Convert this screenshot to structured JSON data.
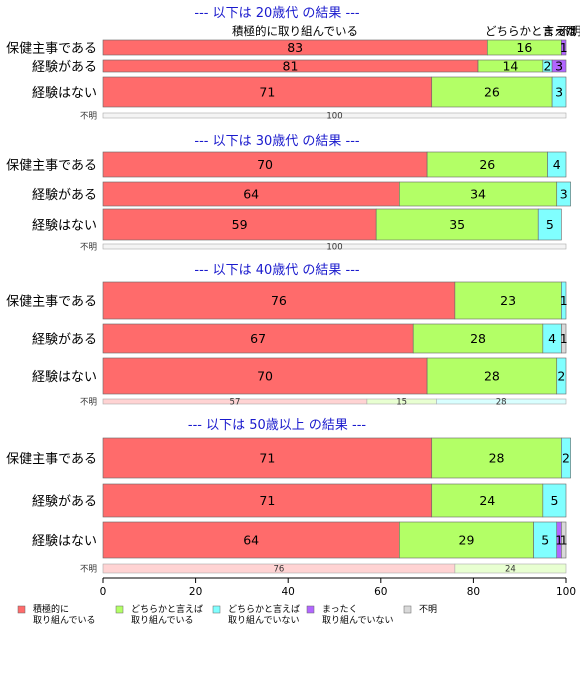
{
  "chart_data": {
    "type": "bar",
    "orientation": "horizontal",
    "stacked": true,
    "xlim": [
      0,
      100
    ],
    "x_ticks": [
      0,
      20,
      40,
      60,
      80,
      100
    ],
    "colors": [
      "#ff6b6b",
      "#b3ff66",
      "#80ffff",
      "#b266ff",
      "#d9d9d9"
    ],
    "legend": [
      "積極的に\n取り組んでいる",
      "どちらかと言えば\n取り組んでいる",
      "どちらかと言えば\n取り組んでいない",
      "まったく\n取り組んでいない",
      "不明"
    ],
    "top_labels": [
      "積極的に取り組んでいる",
      "どちらかと言えば",
      "まった",
      "不明"
    ],
    "groups": [
      {
        "title": "--- 以下は 20歳代 の結果 ---",
        "rows": [
          {
            "label": "保健主事である",
            "values": [
              83,
              16,
              0,
              1,
              0
            ],
            "value_labels": [
              "83",
              "16",
              "",
              "1",
              ""
            ]
          },
          {
            "label": "経験がある",
            "values": [
              81,
              14,
              2,
              3,
              0
            ],
            "value_labels": [
              "81",
              "14",
              "2",
              "3",
              ""
            ]
          },
          {
            "label": "経験はない",
            "values": [
              71,
              26,
              3,
              0,
              0
            ],
            "value_labels": [
              "71",
              "26",
              "3",
              "",
              ""
            ]
          },
          {
            "label": "不明",
            "values": [
              0,
              0,
              0,
              0,
              100
            ],
            "value_labels": [
              "",
              "",
              "",
              "",
              "100"
            ]
          }
        ]
      },
      {
        "title": "--- 以下は 30歳代 の結果 ---",
        "rows": [
          {
            "label": "保健主事である",
            "values": [
              70,
              26,
              4,
              0,
              0
            ],
            "value_labels": [
              "70",
              "26",
              "4",
              "",
              ""
            ]
          },
          {
            "label": "経験がある",
            "values": [
              64,
              34,
              3,
              0,
              0
            ],
            "value_labels": [
              "64",
              "34",
              "3",
              "",
              ""
            ]
          },
          {
            "label": "経験はない",
            "values": [
              59,
              35,
              5,
              0,
              0
            ],
            "value_labels": [
              "59",
              "35",
              "5",
              "",
              ""
            ]
          },
          {
            "label": "不明",
            "values": [
              0,
              0,
              0,
              0,
              100
            ],
            "value_labels": [
              "",
              "",
              "",
              "",
              "100"
            ]
          }
        ]
      },
      {
        "title": "--- 以下は 40歳代 の結果 ---",
        "rows": [
          {
            "label": "保健主事である",
            "values": [
              76,
              23,
              1,
              0,
              0
            ],
            "value_labels": [
              "76",
              "23",
              "1",
              "",
              ""
            ]
          },
          {
            "label": "経験がある",
            "values": [
              67,
              28,
              4,
              0,
              1
            ],
            "value_labels": [
              "67",
              "28",
              "4",
              "",
              "1"
            ]
          },
          {
            "label": "経験はない",
            "values": [
              70,
              28,
              2,
              0,
              0
            ],
            "value_labels": [
              "70",
              "28",
              "2",
              "",
              ""
            ]
          },
          {
            "label": "不明",
            "values": [
              57,
              15,
              28,
              0,
              0
            ],
            "value_labels": [
              "57",
              "15",
              "28",
              "",
              ""
            ]
          }
        ]
      },
      {
        "title": "--- 以下は 50歳以上 の結果 ---",
        "rows": [
          {
            "label": "保健主事である",
            "values": [
              71,
              28,
              2,
              0,
              0
            ],
            "value_labels": [
              "71",
              "28",
              "2",
              "",
              ""
            ]
          },
          {
            "label": "経験がある",
            "values": [
              71,
              24,
              5,
              0,
              0
            ],
            "value_labels": [
              "71",
              "24",
              "5",
              "",
              ""
            ]
          },
          {
            "label": "経験はない",
            "values": [
              64,
              29,
              5,
              1,
              1
            ],
            "value_labels": [
              "64",
              "29",
              "5",
              "1",
              "1"
            ]
          },
          {
            "label": "不明",
            "values": [
              76,
              24,
              0,
              0,
              0
            ],
            "value_labels": [
              "76",
              "24",
              "",
              "",
              ""
            ]
          }
        ]
      }
    ]
  }
}
